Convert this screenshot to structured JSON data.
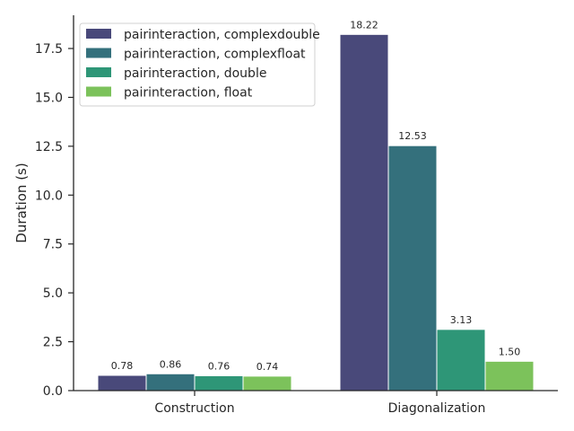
{
  "chart_data": {
    "type": "bar",
    "categories": [
      "Construction",
      "Diagonalization"
    ],
    "series": [
      {
        "name": "pairinteraction, complexdouble",
        "values": [
          0.78,
          18.22
        ],
        "labels": [
          "0.78",
          "18.22"
        ],
        "color": "#49497a"
      },
      {
        "name": "pairinteraction, complexfloat",
        "values": [
          0.86,
          12.53
        ],
        "labels": [
          "0.86",
          "12.53"
        ],
        "color": "#34707c"
      },
      {
        "name": "pairinteraction, double",
        "values": [
          0.76,
          3.13
        ],
        "labels": [
          "0.76",
          "3.13"
        ],
        "color": "#2e9677"
      },
      {
        "name": "pairinteraction, float",
        "values": [
          0.74,
          1.5
        ],
        "labels": [
          "0.74",
          "1.50"
        ],
        "color": "#7cc25b"
      }
    ],
    "title": "",
    "xlabel": "",
    "ylabel": "Duration (s)",
    "ylim": [
      0,
      19.2
    ],
    "yticks": [
      "0.0",
      "2.5",
      "5.0",
      "7.5",
      "10.0",
      "12.5",
      "15.0",
      "17.5"
    ],
    "grid": false,
    "legend_position": "top-left"
  }
}
